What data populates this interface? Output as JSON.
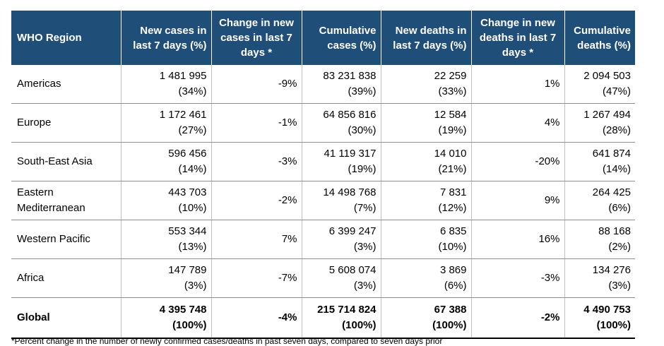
{
  "headers": [
    "WHO Region",
    "New cases in last 7 days (%)",
    "Change in new cases in last 7 days *",
    "Cumulative cases (%)",
    "New deaths in last 7 days (%)",
    "Change in new deaths in last 7 days *",
    "Cumulative deaths (%)"
  ],
  "rows": [
    {
      "region": "Americas",
      "new_cases": "1 481 995",
      "new_cases_pct": "(34%)",
      "change_cases": "-9%",
      "cum_cases": "83 231 838",
      "cum_cases_pct": "(39%)",
      "new_deaths": "22 259",
      "new_deaths_pct": "(33%)",
      "change_deaths": "1%",
      "cum_deaths": "2 094 503",
      "cum_deaths_pct": "(47%)"
    },
    {
      "region": "Europe",
      "new_cases": "1 172 461",
      "new_cases_pct": "(27%)",
      "change_cases": "-1%",
      "cum_cases": "64 856 816",
      "cum_cases_pct": "(30%)",
      "new_deaths": "12 584",
      "new_deaths_pct": "(19%)",
      "change_deaths": "4%",
      "cum_deaths": "1 267 494",
      "cum_deaths_pct": "(28%)"
    },
    {
      "region": "South-East Asia",
      "new_cases": "596 456",
      "new_cases_pct": "(14%)",
      "change_cases": "-3%",
      "cum_cases": "41 119 317",
      "cum_cases_pct": "(19%)",
      "new_deaths": "14 010",
      "new_deaths_pct": "(21%)",
      "change_deaths": "-20%",
      "cum_deaths": "641 874",
      "cum_deaths_pct": "(14%)"
    },
    {
      "region": "Eastern Mediterranean",
      "new_cases": "443 703",
      "new_cases_pct": "(10%)",
      "change_cases": "-2%",
      "cum_cases": "14 498 768",
      "cum_cases_pct": "(7%)",
      "new_deaths": "7 831",
      "new_deaths_pct": "(12%)",
      "change_deaths": "9%",
      "cum_deaths": "264 425",
      "cum_deaths_pct": "(6%)"
    },
    {
      "region": "Western Pacific",
      "new_cases": "553 344",
      "new_cases_pct": "(13%)",
      "change_cases": "7%",
      "cum_cases": "6 399 247",
      "cum_cases_pct": "(3%)",
      "new_deaths": "6 835",
      "new_deaths_pct": "(10%)",
      "change_deaths": "16%",
      "cum_deaths": "88 168",
      "cum_deaths_pct": "(2%)"
    },
    {
      "region": "Africa",
      "new_cases": "147 789",
      "new_cases_pct": "(3%)",
      "change_cases": "-7%",
      "cum_cases": "5 608 074",
      "cum_cases_pct": "(3%)",
      "new_deaths": "3 869",
      "new_deaths_pct": "(6%)",
      "change_deaths": "-3%",
      "cum_deaths": "134 276",
      "cum_deaths_pct": "(3%)"
    },
    {
      "region": "Global",
      "new_cases": "4 395 748",
      "new_cases_pct": "(100%)",
      "change_cases": "-4%",
      "cum_cases": "215 714 824",
      "cum_cases_pct": "(100%)",
      "new_deaths": "67 388",
      "new_deaths_pct": "(100%)",
      "change_deaths": "-2%",
      "cum_deaths": "4 490 753",
      "cum_deaths_pct": "(100%)"
    }
  ],
  "footnote": "*Percent change in the number of newly confirmed cases/deaths in past seven days, compared to seven days prior",
  "colors": {
    "header_bg": "#1f4e79",
    "header_text": "#ffffff"
  }
}
